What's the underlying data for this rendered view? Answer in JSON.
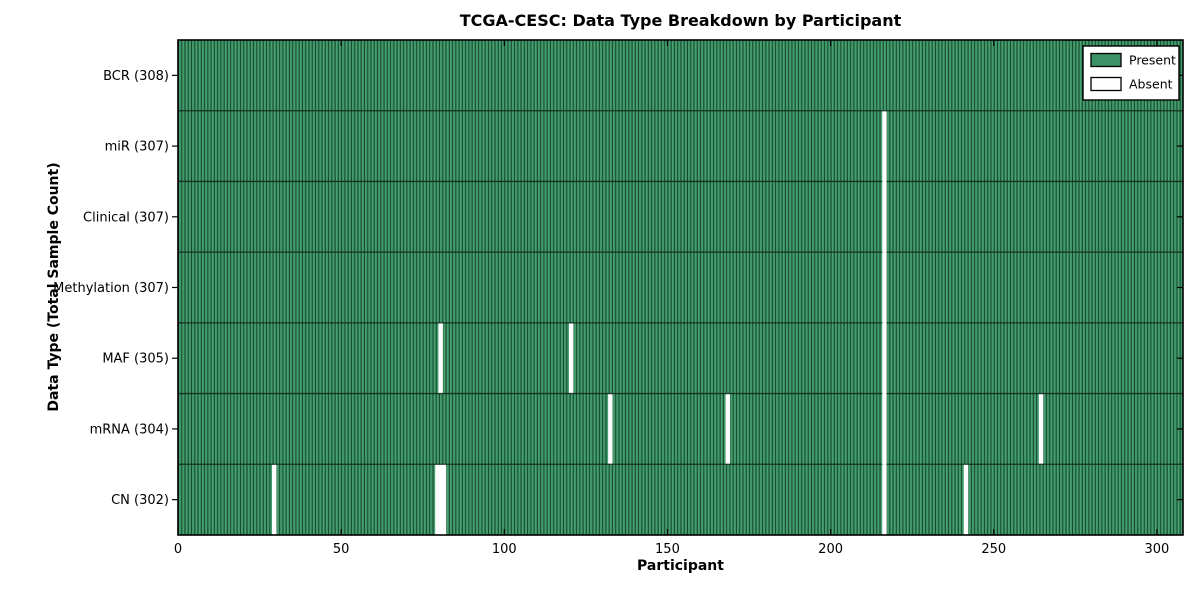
{
  "figure": {
    "background": "#ffffff"
  },
  "chart_data": {
    "type": "heatmap",
    "title": "TCGA-CESC: Data Type Breakdown by Participant",
    "xlabel": "Participant",
    "ylabel": "Data Type (Total Sample Count)",
    "n_participants": 308,
    "xlim": [
      0,
      308
    ],
    "x_ticks": [
      0,
      50,
      100,
      150,
      200,
      250,
      300
    ],
    "grid": false,
    "rows": [
      {
        "label": "BCR (308)",
        "name": "BCR",
        "total": 308,
        "absent_participants": []
      },
      {
        "label": "miR (307)",
        "name": "miR",
        "total": 307,
        "absent_participants": [
          216
        ]
      },
      {
        "label": "Clinical (307)",
        "name": "Clinical",
        "total": 307,
        "absent_participants": [
          216
        ]
      },
      {
        "label": "Methylation (307)",
        "name": "Methylation",
        "total": 307,
        "absent_participants": [
          216
        ]
      },
      {
        "label": "MAF (305)",
        "name": "MAF",
        "total": 305,
        "absent_participants": [
          80,
          120,
          216
        ]
      },
      {
        "label": "mRNA (304)",
        "name": "mRNA",
        "total": 304,
        "absent_participants": [
          132,
          168,
          216,
          264
        ]
      },
      {
        "label": "CN (302)",
        "name": "CN",
        "total": 302,
        "absent_participants": [
          29,
          79,
          80,
          81,
          216,
          241
        ]
      }
    ],
    "legend": {
      "position": "upper right",
      "entries": [
        {
          "label": "Present",
          "color": "#3b9365"
        },
        {
          "label": "Absent",
          "color": "#ffffff"
        }
      ]
    },
    "colors": {
      "present_fill": "#3b9365",
      "present_highlight": "#4aa477",
      "bar_edge": "#17492b",
      "absent_fill": "#ffffff",
      "row_boundary": "#0e2417",
      "axis": "#000000",
      "legend_background": "#ffffff"
    }
  }
}
